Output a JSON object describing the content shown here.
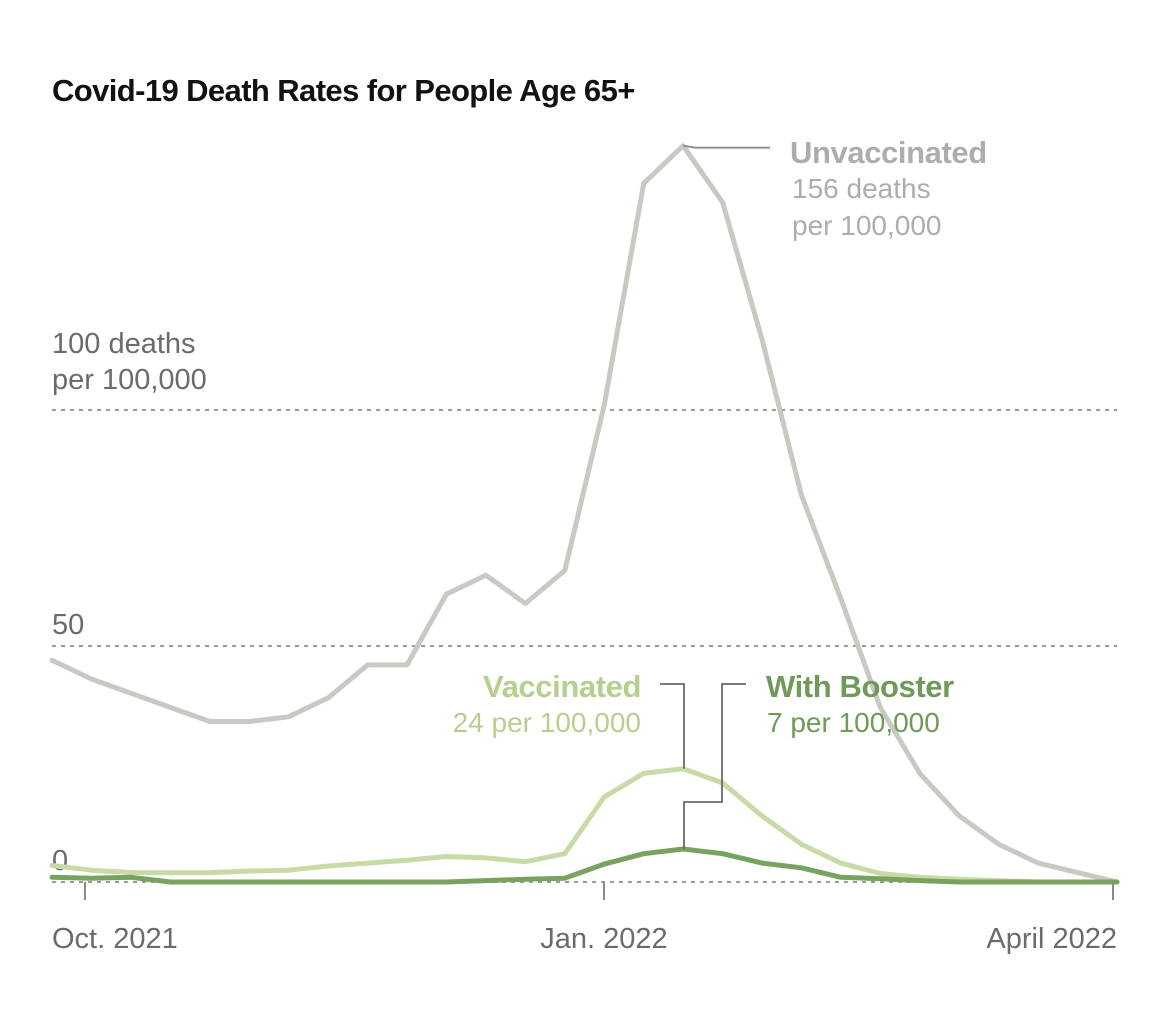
{
  "chart_data": {
    "type": "line",
    "title": "Covid-19 Death Rates for People Age 65+",
    "ylabel": "deaths per 100,000",
    "ylim": [
      0,
      160
    ],
    "y_ticks": [
      {
        "value": 0,
        "label": "0"
      },
      {
        "value": 50,
        "label": "50"
      },
      {
        "value": 100,
        "label_line1": "100 deaths",
        "label_line2": "per 100,000"
      }
    ],
    "x_ticks": [
      {
        "week": 1,
        "label": "Oct. 2021"
      },
      {
        "week": 14,
        "label": "Jan. 2022"
      },
      {
        "week": 27,
        "label": "April 2022"
      }
    ],
    "weeks": [
      0,
      1,
      2,
      3,
      4,
      5,
      6,
      7,
      8,
      9,
      10,
      11,
      12,
      13,
      14,
      15,
      16,
      17,
      18,
      19,
      20,
      21,
      22,
      23,
      24,
      25,
      26,
      27
    ],
    "series": [
      {
        "name": "Unvaccinated",
        "color": "#c8c9c2",
        "values": [
          47,
          43,
          40,
          37,
          34,
          34,
          35,
          39,
          46,
          46,
          61,
          65,
          59,
          66,
          101,
          148,
          156,
          144,
          115,
          82,
          60,
          37,
          23,
          14,
          8,
          4,
          2,
          0
        ]
      },
      {
        "name": "Vaccinated",
        "color": "#c8dba6",
        "values": [
          3.5,
          2.5,
          2,
          2,
          2,
          2.3,
          2.5,
          3.4,
          4,
          4.6,
          5.4,
          5.1,
          4.3,
          6,
          18,
          23,
          24,
          21,
          14,
          8,
          4,
          1.8,
          1,
          0.6,
          0.3,
          0,
          0,
          0
        ]
      },
      {
        "name": "With Booster",
        "color": "#77a260",
        "values": [
          1,
          0.8,
          1,
          0,
          0,
          0,
          0,
          0,
          0,
          0,
          0,
          0.3,
          0.6,
          0.8,
          3.8,
          6,
          7,
          6,
          4,
          3,
          1,
          0.7,
          0.3,
          0,
          0,
          0,
          0,
          0
        ]
      }
    ],
    "annotations": [
      {
        "series": "Unvaccinated",
        "head": "Unvaccinated",
        "line1": "156 deaths",
        "line2": "per 100,000"
      },
      {
        "series": "Vaccinated",
        "head": "Vaccinated",
        "line1": "24 per 100,000"
      },
      {
        "series": "With Booster",
        "head": "With Booster",
        "line1": "7 per 100,000"
      }
    ],
    "label_colors": {
      "Unvaccinated": "#adadad",
      "Vaccinated": "#b6cf8f",
      "With Booster": "#6f9a58"
    },
    "grid": true
  }
}
